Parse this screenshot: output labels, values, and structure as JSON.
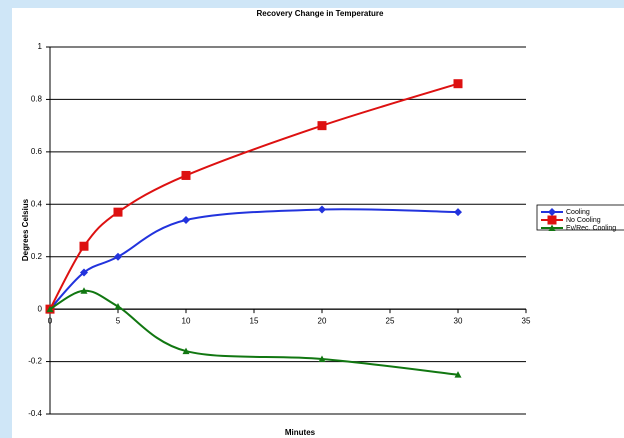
{
  "chart_data": {
    "type": "line",
    "title": "Recovery Change in Temperature",
    "x_label": "Minutes",
    "y_label": "Degrees Celsius",
    "x": [
      0,
      2.5,
      5,
      10,
      20,
      30
    ],
    "series": [
      {
        "name": "Cooling",
        "color": "#2233dd",
        "marker": "diamond",
        "values": [
          0,
          0.14,
          0.2,
          0.34,
          0.38,
          0.37
        ]
      },
      {
        "name": "No Cooling",
        "color": "#dd1111",
        "marker": "square",
        "values": [
          0,
          0.24,
          0.37,
          0.51,
          0.7,
          0.86
        ]
      },
      {
        "name": "Ev/Rec. Cooling",
        "color": "#117711",
        "marker": "triangle",
        "values": [
          0,
          0.07,
          0.01,
          -0.16,
          -0.19,
          -0.25
        ]
      }
    ],
    "xlim": [
      0,
      35
    ],
    "xticks": [
      0,
      5,
      10,
      15,
      20,
      25,
      30,
      35
    ],
    "ylim": [
      -0.4,
      1
    ],
    "yticks": [
      -0.4,
      -0.2,
      0,
      0.2,
      0.4,
      0.6,
      0.8,
      1
    ],
    "grid": true,
    "legend": "right"
  }
}
